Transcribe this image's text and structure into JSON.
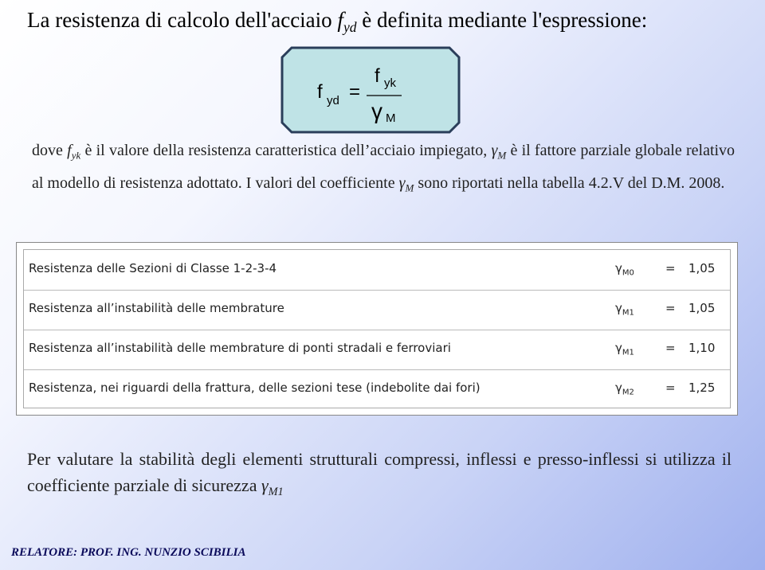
{
  "title": {
    "before": "La resistenza di calcolo dell'acciaio",
    "symbol": "f",
    "sub": "yd",
    "after": "è definita mediante l'espressione:"
  },
  "formula": {
    "lhs": "f",
    "lhs_sub": "yd",
    "eq": "=",
    "num": "f",
    "num_sub": "yk",
    "den": "γ",
    "den_sub": "M"
  },
  "paragraph1": {
    "t1": "dove",
    "s1": "f",
    "s1_sub": "yk",
    "t2": "è il valore della resistenza caratteristica dell’acciaio impiegato,",
    "s2": "γ",
    "s2_sub": "M",
    "t3": "è il fattore parziale globale relativo al modello di resistenza adottato. I valori del coefficiente",
    "s3": "γ",
    "s3_sub": "M",
    "t4": "sono riportati nella tabella 4.2.V del D.M. 2008."
  },
  "table": {
    "rows": [
      [
        "Resistenza delle Sezioni di Classe 1-2-3-4",
        "γ",
        "M0",
        "=",
        "1,05"
      ],
      [
        "Resistenza all’instabilità delle membrature",
        "γ",
        "M1",
        "=",
        "1,05"
      ],
      [
        "Resistenza all’instabilità delle membrature di ponti stradali e ferroviari",
        "γ",
        "M1",
        "=",
        "1,10"
      ],
      [
        "Resistenza, nei riguardi della frattura, delle sezioni tese (indebolite dai fori)",
        "γ",
        "M2",
        "=",
        "1,25"
      ]
    ]
  },
  "paragraph2": {
    "text": "Per valutare la stabilità degli elementi strutturali compressi, inflessi e presso-inflessi si utilizza il coefficiente parziale di sicurezza",
    "symbol": "γ",
    "sub": "M1"
  },
  "footer": "RELATORE: PROF. ING. NUNZIO SCIBILIA"
}
